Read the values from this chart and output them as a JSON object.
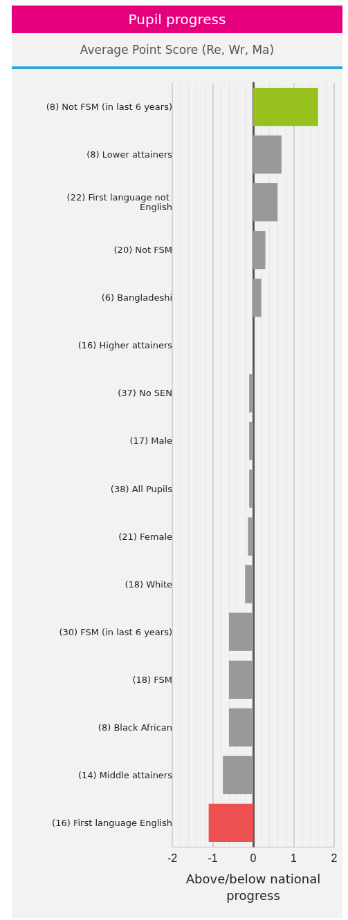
{
  "chart_data": {
    "type": "bar",
    "orientation": "horizontal",
    "title": "Pupil progress",
    "subtitle": "Average Point Score (Re, Wr, Ma)",
    "xlabel": "Above/below national progress",
    "categories": [
      "(8) Not FSM (in last 6 years)",
      "(8) Lower attainers",
      "(22) First language not English",
      "(20) Not FSM",
      "(6) Bangladeshi",
      "(16) Higher attainers",
      "(37) No SEN",
      "(17) Male",
      "(38) All Pupils",
      "(21) Female",
      "(18) White",
      "(30) FSM (in last 6 years)",
      "(18) FSM",
      "(8) Black African",
      "(14) Middle attainers",
      "(16) First language English"
    ],
    "values": [
      1.6,
      0.7,
      0.6,
      0.3,
      0.2,
      0,
      -0.1,
      -0.1,
      -0.1,
      -0.13,
      -0.2,
      -0.6,
      -0.6,
      -0.6,
      -0.75,
      -1.1
    ],
    "colors": [
      "#97c11f",
      "#999999",
      "#999999",
      "#999999",
      "#999999",
      "#999999",
      "#999999",
      "#999999",
      "#999999",
      "#999999",
      "#999999",
      "#999999",
      "#999999",
      "#999999",
      "#999999",
      "#ec5050"
    ],
    "xlim": [
      -2,
      2
    ],
    "xticks": [
      -2,
      -1,
      0,
      1,
      2
    ],
    "grid": "x"
  }
}
